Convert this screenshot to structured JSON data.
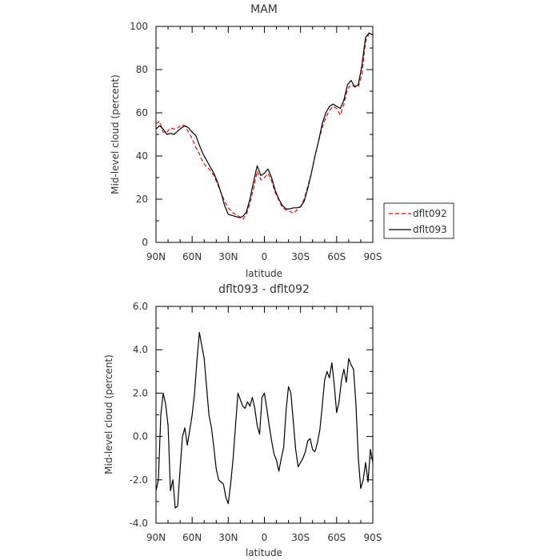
{
  "chart_data": [
    {
      "type": "line",
      "title": "MAM",
      "xlabel": "latitude",
      "ylabel": "Mid-level cloud (percent)",
      "x_range": [
        90,
        -90
      ],
      "ylim": [
        0,
        100
      ],
      "x_ticks": [
        {
          "value": 90,
          "label": "90N"
        },
        {
          "value": 60,
          "label": "60N"
        },
        {
          "value": 30,
          "label": "30N"
        },
        {
          "value": 0,
          "label": "0"
        },
        {
          "value": -30,
          "label": "30S"
        },
        {
          "value": -60,
          "label": "60S"
        },
        {
          "value": -90,
          "label": "90S"
        }
      ],
      "y_ticks": [
        {
          "value": 0,
          "label": "0"
        },
        {
          "value": 20,
          "label": "20"
        },
        {
          "value": 40,
          "label": "40"
        },
        {
          "value": 60,
          "label": "60"
        },
        {
          "value": 80,
          "label": "80"
        },
        {
          "value": 100,
          "label": "100"
        }
      ],
      "legend_position": "right",
      "series": [
        {
          "name": "dflt092",
          "color": "#ff0000",
          "dash": "dashed",
          "x": [
            90,
            87,
            84,
            81,
            78,
            75,
            72,
            69,
            66,
            63,
            60,
            57,
            54,
            51,
            48,
            45,
            42,
            39,
            36,
            33,
            30,
            27,
            24,
            21,
            18,
            15,
            12,
            9,
            6,
            3,
            0,
            -3,
            -6,
            -9,
            -12,
            -15,
            -18,
            -21,
            -24,
            -27,
            -30,
            -33,
            -36,
            -39,
            -42,
            -45,
            -48,
            -51,
            -54,
            -57,
            -60,
            -63,
            -66,
            -69,
            -72,
            -75,
            -78,
            -81,
            -84,
            -87,
            -90
          ],
          "y": [
            55.0,
            56.0,
            51.0,
            51.0,
            53.0,
            52.5,
            53.0,
            54.5,
            54.0,
            51.0,
            48.0,
            44.0,
            41.0,
            37.0,
            35.0,
            33.5,
            31.0,
            27.0,
            23.0,
            19.0,
            16.0,
            14.0,
            13.0,
            12.0,
            10.5,
            13.0,
            18.0,
            25.0,
            33.0,
            29.0,
            30.0,
            32.0,
            28.5,
            23.0,
            19.5,
            16.0,
            15.0,
            14.5,
            13.5,
            15.0,
            16.5,
            20.0,
            26.0,
            32.0,
            40.0,
            47.0,
            53.0,
            58.0,
            61.0,
            63.0,
            62.0,
            59.0,
            64.0,
            71.0,
            73.0,
            72.0,
            72.0,
            78.0,
            93.0,
            97.0,
            96.0
          ]
        },
        {
          "name": "dflt093",
          "color": "#000000",
          "dash": "solid",
          "x": [
            90,
            87,
            84,
            81,
            78,
            75,
            72,
            69,
            66,
            63,
            60,
            57,
            54,
            51,
            48,
            45,
            42,
            39,
            36,
            33,
            30,
            27,
            24,
            21,
            18,
            15,
            12,
            9,
            6,
            3,
            0,
            -3,
            -6,
            -9,
            -12,
            -15,
            -18,
            -21,
            -24,
            -27,
            -30,
            -33,
            -36,
            -39,
            -42,
            -45,
            -48,
            -51,
            -54,
            -57,
            -60,
            -63,
            -66,
            -69,
            -72,
            -75,
            -78,
            -81,
            -84,
            -87,
            -90
          ],
          "y": [
            52.5,
            54.0,
            52.5,
            50.0,
            50.5,
            50.0,
            51.5,
            53.0,
            54.0,
            53.0,
            51.0,
            49.5,
            45.0,
            41.0,
            38.0,
            35.0,
            32.0,
            28.0,
            23.0,
            17.0,
            13.0,
            12.5,
            12.0,
            11.5,
            12.0,
            14.0,
            20.0,
            28.0,
            35.5,
            31.0,
            32.0,
            34.0,
            30.0,
            24.0,
            20.0,
            17.0,
            15.5,
            15.5,
            16.0,
            16.0,
            16.5,
            19.0,
            25.0,
            32.0,
            40.0,
            47.0,
            55.0,
            60.0,
            63.0,
            64.0,
            63.0,
            62.0,
            66.0,
            73.0,
            75.0,
            72.0,
            73.0,
            82.0,
            95.0,
            97.0,
            96.0
          ]
        }
      ]
    },
    {
      "type": "line",
      "title": "dflt093 - dflt092",
      "xlabel": "latitude",
      "ylabel": "Mid-level cloud (percent)",
      "x_range": [
        90,
        -90
      ],
      "ylim": [
        -4.0,
        6.0
      ],
      "x_ticks": [
        {
          "value": 90,
          "label": "90N"
        },
        {
          "value": 60,
          "label": "60N"
        },
        {
          "value": 30,
          "label": "30N"
        },
        {
          "value": 0,
          "label": "0"
        },
        {
          "value": -30,
          "label": "30S"
        },
        {
          "value": -60,
          "label": "60S"
        },
        {
          "value": -90,
          "label": "90S"
        }
      ],
      "y_ticks": [
        {
          "value": -4.0,
          "label": "-4.0"
        },
        {
          "value": -2.0,
          "label": "-2.0"
        },
        {
          "value": 0.0,
          "label": "0.0"
        },
        {
          "value": 2.0,
          "label": "2.0"
        },
        {
          "value": 4.0,
          "label": "4.0"
        },
        {
          "value": 6.0,
          "label": "6.0"
        }
      ],
      "series": [
        {
          "color": "#000000",
          "dash": "solid",
          "x": [
            90,
            88,
            86,
            84,
            82,
            80,
            78,
            76,
            74,
            72,
            70,
            68,
            66,
            64,
            62,
            60,
            58,
            56,
            54,
            52,
            50,
            48,
            46,
            44,
            42,
            40,
            38,
            36,
            34,
            32,
            30,
            28,
            26,
            24,
            22,
            20,
            18,
            16,
            14,
            12,
            10,
            8,
            6,
            4,
            2,
            0,
            -2,
            -4,
            -6,
            -8,
            -10,
            -12,
            -14,
            -16,
            -18,
            -20,
            -22,
            -24,
            -26,
            -28,
            -30,
            -32,
            -34,
            -36,
            -38,
            -40,
            -42,
            -44,
            -46,
            -48,
            -50,
            -52,
            -54,
            -56,
            -58,
            -60,
            -62,
            -64,
            -66,
            -68,
            -70,
            -72,
            -74,
            -76,
            -78,
            -80,
            -82,
            -84,
            -86,
            -88,
            -90
          ],
          "y": [
            -2.5,
            -2.0,
            1.0,
            2.0,
            1.5,
            0.5,
            -2.5,
            -2.0,
            -3.3,
            -3.2,
            -1.5,
            0.0,
            0.4,
            -0.4,
            0.3,
            1.0,
            2.0,
            3.5,
            4.8,
            4.2,
            3.6,
            2.3,
            1.0,
            0.4,
            -0.5,
            -1.5,
            -2.0,
            -2.1,
            -2.2,
            -2.8,
            -3.1,
            -2.2,
            -1.0,
            0.5,
            2.0,
            1.7,
            1.4,
            1.3,
            1.6,
            1.4,
            1.8,
            1.3,
            0.5,
            0.1,
            1.8,
            2.0,
            1.3,
            0.5,
            -0.2,
            -0.8,
            -1.1,
            -1.6,
            -1.0,
            -0.5,
            1.2,
            2.3,
            2.0,
            0.7,
            -0.6,
            -1.4,
            -1.2,
            -1.0,
            -0.7,
            -0.2,
            -0.1,
            -0.6,
            -0.7,
            -0.3,
            0.3,
            1.4,
            2.6,
            3.0,
            2.7,
            3.4,
            2.4,
            1.1,
            1.6,
            2.6,
            3.1,
            2.5,
            3.6,
            3.3,
            3.1,
            1.5,
            -1.0,
            -2.4,
            -2.0,
            -1.2,
            -2.1,
            -0.6,
            -1.2
          ]
        }
      ]
    }
  ],
  "legend": {
    "items": [
      {
        "label": "dflt092",
        "color": "#ff0000",
        "dash": "dashed"
      },
      {
        "label": "dflt093",
        "color": "#000000",
        "dash": "solid"
      }
    ]
  }
}
